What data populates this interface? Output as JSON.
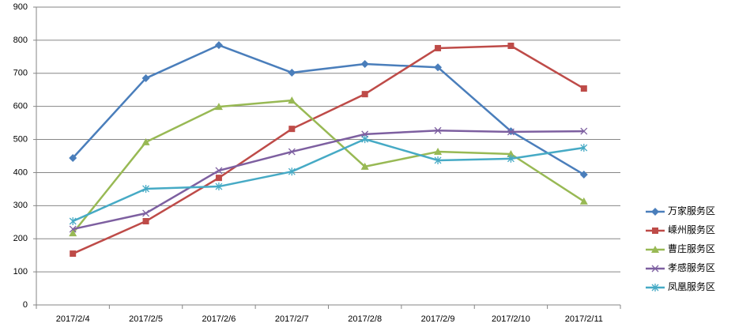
{
  "chart_data": {
    "type": "line",
    "categories": [
      "2017/2/4",
      "2017/2/5",
      "2017/2/6",
      "2017/2/7",
      "2017/2/8",
      "2017/2/9",
      "2017/2/10",
      "2017/2/11"
    ],
    "series": [
      {
        "name": "万家服务区",
        "color": "#4a7ebb",
        "marker": "diamond",
        "values": [
          444,
          685,
          785,
          702,
          728,
          718,
          525,
          394
        ]
      },
      {
        "name": "嵊州服务区",
        "color": "#be4b48",
        "marker": "square",
        "values": [
          155,
          253,
          384,
          532,
          637,
          776,
          783,
          654
        ]
      },
      {
        "name": "曹庄服务区",
        "color": "#98b954",
        "marker": "triangle",
        "values": [
          217,
          492,
          599,
          618,
          418,
          463,
          456,
          313
        ]
      },
      {
        "name": "孝感服务区",
        "color": "#7d5fa0",
        "marker": "x",
        "values": [
          229,
          277,
          406,
          463,
          516,
          527,
          523,
          525
        ]
      },
      {
        "name": "凤凰服务区",
        "color": "#46aac5",
        "marker": "star",
        "values": [
          253,
          351,
          358,
          403,
          501,
          437,
          442,
          475
        ]
      }
    ],
    "ylim": [
      0,
      900
    ],
    "yticks": [
      0,
      100,
      200,
      300,
      400,
      500,
      600,
      700,
      800,
      900
    ],
    "grid": true,
    "legend": "right"
  }
}
